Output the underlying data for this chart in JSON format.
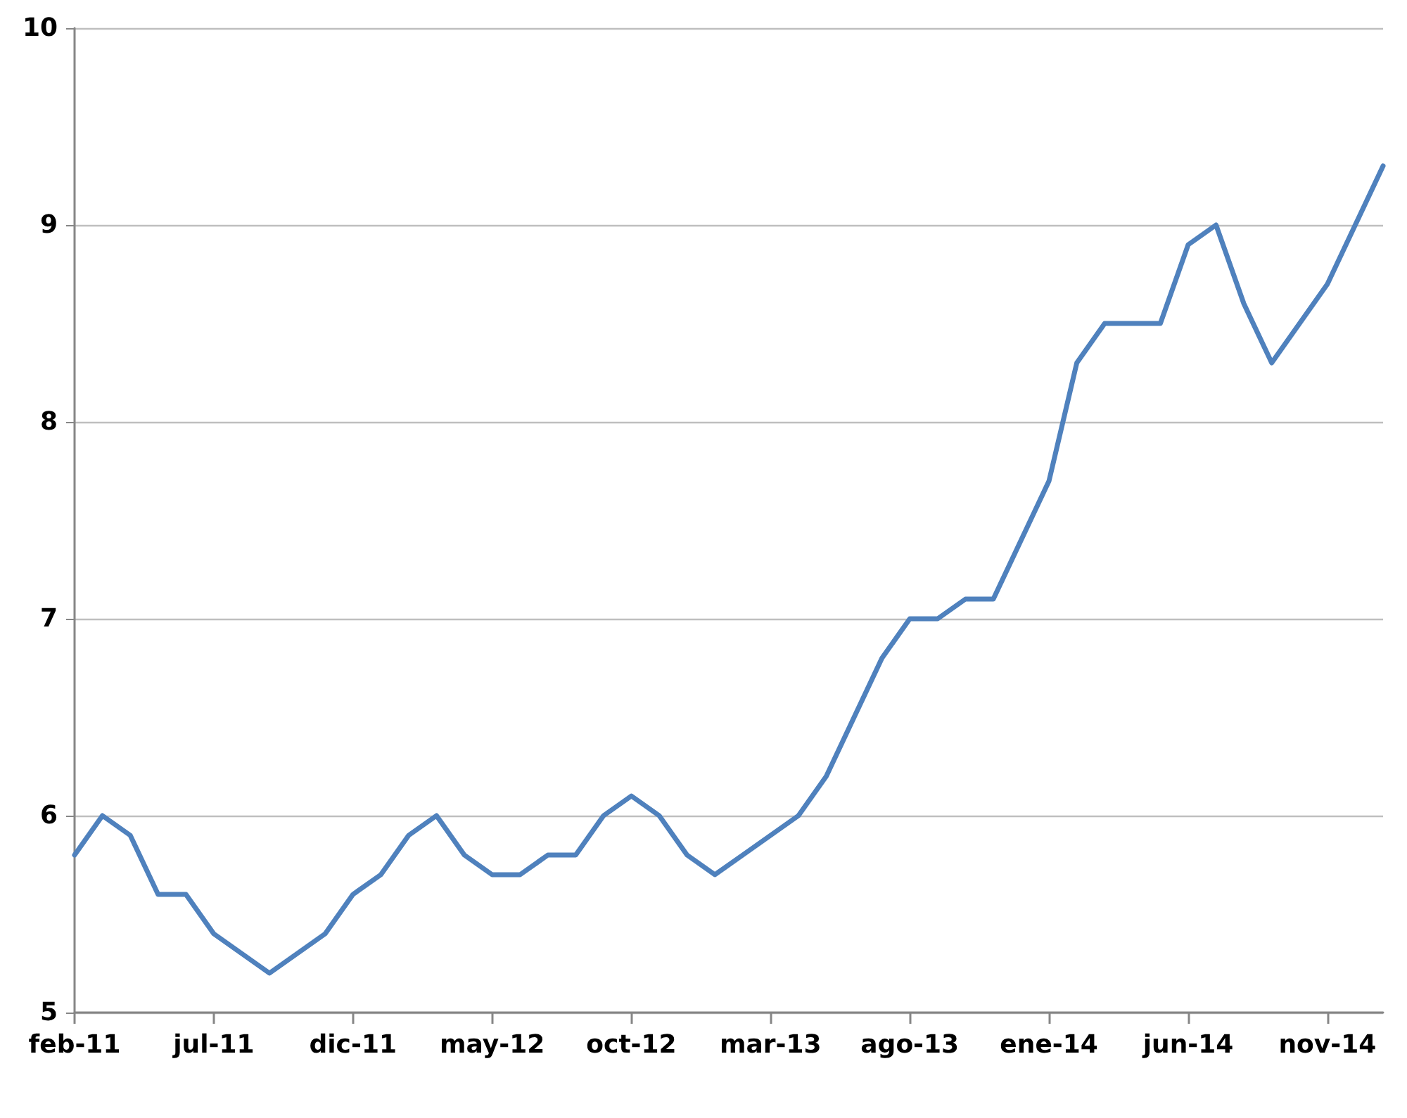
{
  "chart_data": {
    "type": "line",
    "categories": [
      "feb-11",
      null,
      null,
      null,
      null,
      "jul-11",
      null,
      null,
      null,
      null,
      "dic-11",
      null,
      null,
      null,
      null,
      "may-12",
      null,
      null,
      null,
      null,
      "oct-12",
      null,
      null,
      null,
      null,
      "mar-13",
      null,
      null,
      null,
      null,
      "ago-13",
      null,
      null,
      null,
      null,
      "ene-14",
      null,
      null,
      null,
      null,
      "jun-14",
      null,
      null,
      null,
      null,
      "nov-14",
      null,
      null
    ],
    "series": [
      {
        "color": "#4f81bd",
        "values": [
          5.8,
          6.0,
          5.9,
          5.6,
          5.6,
          5.4,
          5.3,
          5.2,
          5.3,
          5.4,
          5.6,
          5.7,
          5.9,
          6.0,
          5.8,
          5.7,
          5.7,
          5.8,
          5.8,
          6.0,
          6.1,
          6.0,
          5.8,
          5.7,
          5.8,
          5.9,
          6.0,
          6.2,
          6.5,
          6.8,
          7.0,
          7.0,
          7.1,
          7.1,
          7.4,
          7.7,
          8.3,
          8.5,
          8.5,
          8.5,
          8.9,
          9.0,
          8.6,
          8.3,
          8.5,
          8.7,
          9.0,
          9.3
        ]
      }
    ],
    "ylim": [
      5,
      10
    ],
    "yticks": [
      5,
      6,
      7,
      8,
      9,
      10
    ],
    "grid": "y",
    "marker": "none",
    "line_style": "solid"
  }
}
